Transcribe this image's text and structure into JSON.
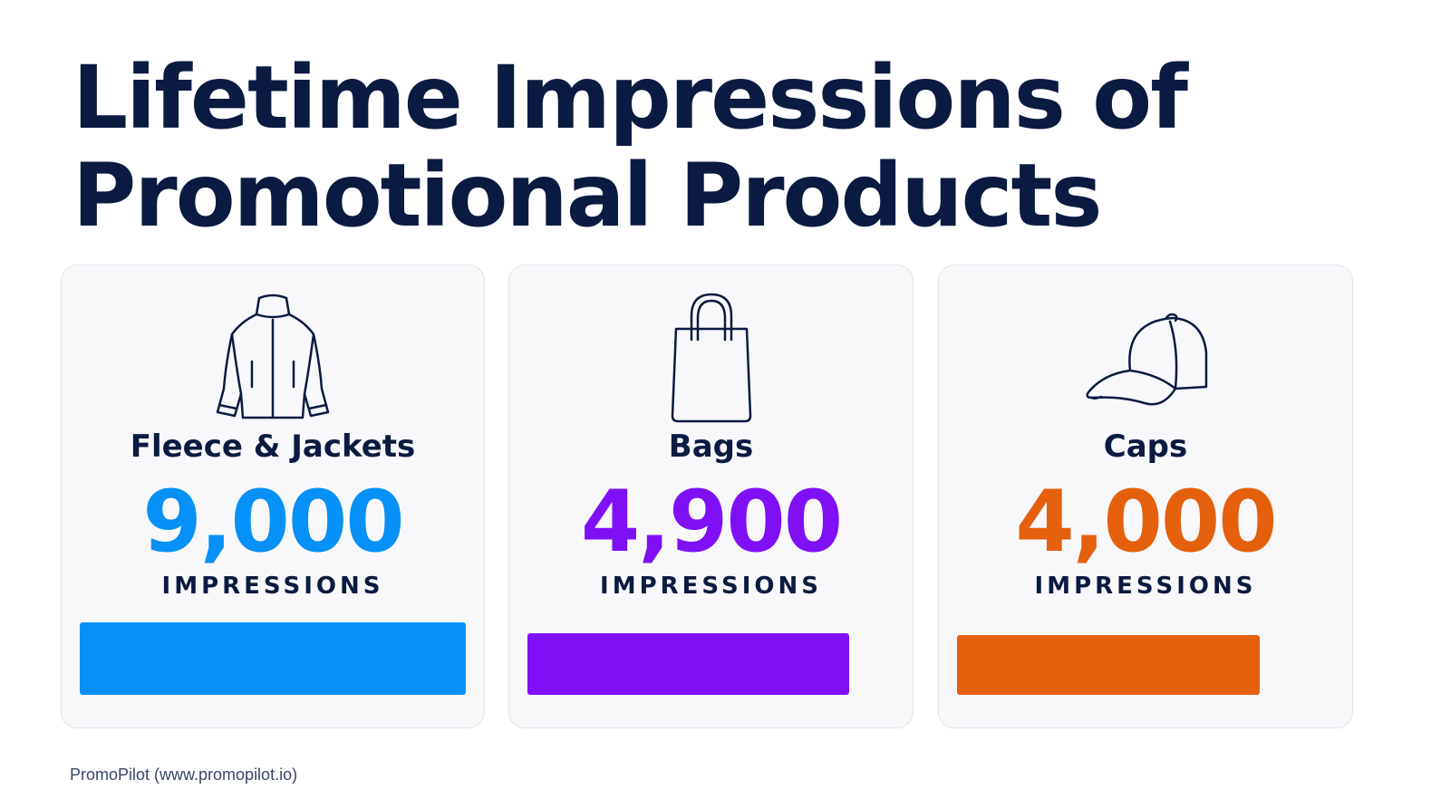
{
  "title_line1": "Lifetime Impressions of",
  "title_line2": "Promotional Products",
  "chart_data": {
    "type": "bar",
    "title": "Lifetime Impressions of Promotional Products",
    "categories": [
      "Fleece & Jackets",
      "Bags",
      "Caps"
    ],
    "values": [
      9000,
      4900,
      4000
    ],
    "value_labels": [
      "9,000",
      "4,900",
      "4,000"
    ],
    "unit_label": "IMPRESSIONS",
    "ylim": [
      0,
      9000
    ],
    "colors": [
      "#0591f7",
      "#7f10f6",
      "#e5600d"
    ],
    "icons": [
      "jacket-icon",
      "bag-icon",
      "cap-icon"
    ],
    "xlabel": "",
    "ylabel": "",
    "grid": false
  },
  "cards": [
    {
      "label": "Fleece & Jackets",
      "value": "9,000",
      "unit": "IMPRESSIONS",
      "color": "#0591f7",
      "icon": "jacket-icon"
    },
    {
      "label": "Bags",
      "value": "4,900",
      "unit": "IMPRESSIONS",
      "color": "#7f10f6",
      "icon": "bag-icon"
    },
    {
      "label": "Caps",
      "value": "4,000",
      "unit": "IMPRESSIONS",
      "color": "#e5600d",
      "icon": "cap-icon"
    }
  ],
  "source": "PromoPilot (www.promopilot.io)"
}
